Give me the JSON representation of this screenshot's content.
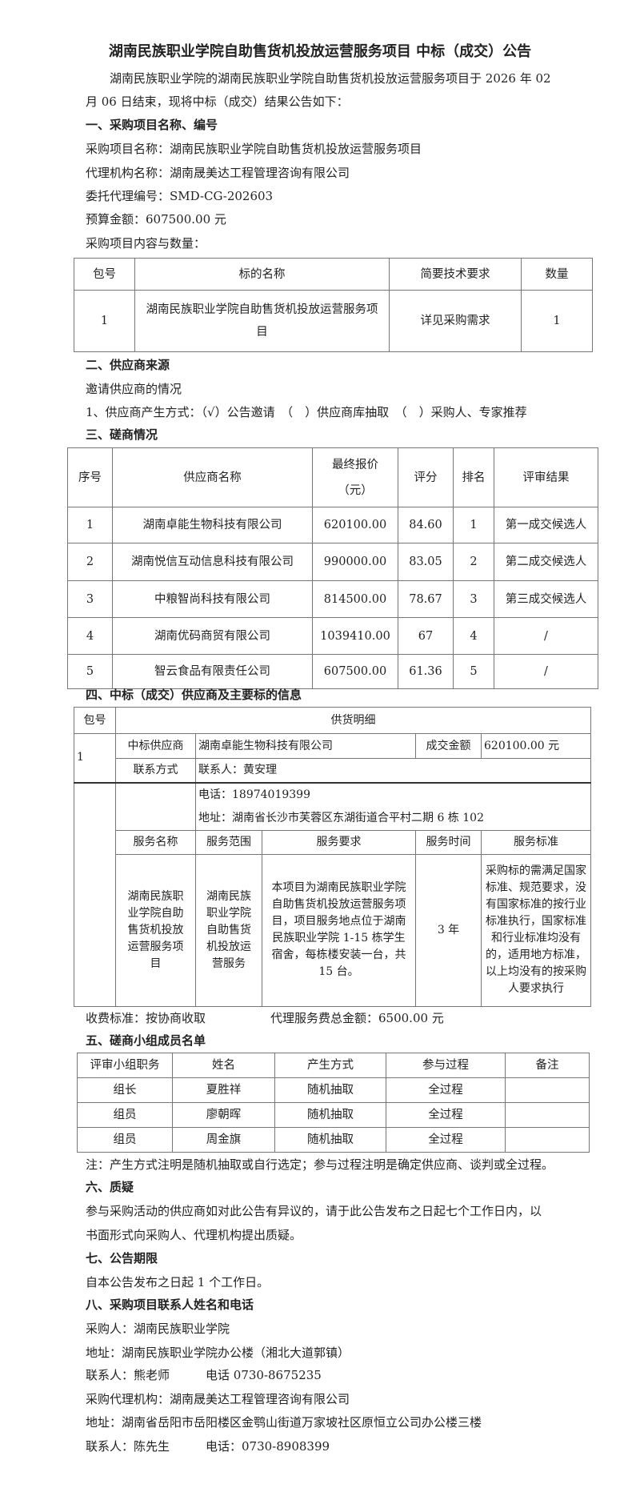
{
  "title": "湖南民族职业学院自助售货机投放运营服务项目 中标（成交）公告",
  "intro": [
    "湖南民族职业学院的湖南民族职业学院自助售货机投放运营服务项目于 2026 年 02",
    "月 06 日结束，现将中标（成交）结果公告如下："
  ],
  "s1": {
    "heading": "一、采购项目名称、编号",
    "project_name": "采购项目名称：湖南民族职业学院自助售货机投放运营服务项目",
    "agency": "代理机构名称：湖南晟美达工程管理咨询有限公司",
    "code": "委托代理编号：SMD-CG-202603",
    "budget": "预算金额：607500.00 元",
    "content_label": "采购项目内容与数量：",
    "table": {
      "headers": [
        "包号",
        "标的名称",
        "简要技术要求",
        "数量"
      ],
      "rows": [
        [
          "1",
          "湖南民族职业学院自助售货机投放运营服务项目",
          "详见采购需求",
          "1"
        ]
      ]
    }
  },
  "s2": {
    "heading": "二、供应商来源",
    "sub": "邀请供应商的情况",
    "method": "1、供应商产生方式：（√）公告邀请　（　）供应商库抽取　（　）采购人、专家推荐"
  },
  "s3": {
    "heading": "三、磋商情况",
    "headers": [
      "序号",
      "供应商名称",
      "最终报价（元）",
      "评分",
      "排名",
      "评审结果"
    ],
    "rows": [
      [
        "1",
        "湖南卓能生物科技有限公司",
        "620100.00",
        "84.60",
        "1",
        "第一成交候选人"
      ],
      [
        "2",
        "湖南悦信互动信息科技有限公司",
        "990000.00",
        "83.05",
        "2",
        "第二成交候选人"
      ],
      [
        "3",
        "中粮智尚科技有限公司",
        "814500.00",
        "78.67",
        "3",
        "第三成交候选人"
      ],
      [
        "4",
        "湖南优码商贸有限公司",
        "1039410.00",
        "67",
        "4",
        "/"
      ],
      [
        "5",
        "智云食品有限责任公司",
        "607500.00",
        "61.36",
        "5",
        "/"
      ]
    ]
  },
  "s4": {
    "heading": "四、中标（成交）供应商及主要标的信息",
    "pkg_label": "包号",
    "detail_label": "供货明细",
    "pkg": "1",
    "winner_label": "中标供应商",
    "winner": "湖南卓能生物科技有限公司",
    "amount_label": "成交金额",
    "amount": "620100.00 元",
    "contact_label": "联系方式",
    "contact": "联系人：黄安理",
    "phone": "电话：18974019399",
    "address": "地址：湖南省长沙市芙蓉区东湖街道合平村二期 6 栋 102",
    "service_headers": [
      "服务名称",
      "服务范围",
      "服务要求",
      "服务时间",
      "服务标准"
    ],
    "service_row": [
      "湖南民族职业学院自助售货机投放运营服务项目",
      "湖南民族职业学院自助售货机投放运营服务",
      "本项目为湖南民族职业学院自助售货机投放运营服务项目，项目服务地点位于湖南民族职业学院 1-15 栋学生宿舍，每栋楼安装一台，共 15 台。",
      "3 年",
      "采购标的需满足国家标准、规范要求，没有国家标准的按行业标准执行，国家标准和行业标准均没有的，适用地方标准，以上均没有的按采购人要求执行"
    ],
    "fee_standard": "收费标准：按协商收取",
    "fee_total": "代理服务费总金额：6500.00 元"
  },
  "s5": {
    "heading": "五、磋商小组成员名单",
    "headers": [
      "评审小组职务",
      "姓名",
      "产生方式",
      "参与过程",
      "备注"
    ],
    "rows": [
      [
        "组长",
        "夏胜祥",
        "随机抽取",
        "全过程",
        ""
      ],
      [
        "组员",
        "廖朝晖",
        "随机抽取",
        "全过程",
        ""
      ],
      [
        "组员",
        "周金旗",
        "随机抽取",
        "全过程",
        ""
      ]
    ],
    "note": "注：产生方式注明是随机抽取或自行选定；参与过程注明是确定供应商、谈判或全过程。"
  },
  "s6": {
    "heading": "六、质疑",
    "text": [
      "参与采购活动的供应商如对此公告有异议的，请于此公告发布之日起七个工作日内，以",
      "书面形式向采购人、代理机构提出质疑。"
    ]
  },
  "s7": {
    "heading": "七、公告期限",
    "text": "自本公告发布之日起 1 个工作日。"
  },
  "s8": {
    "heading": "八、采购项目联系人姓名和电话",
    "lines": [
      "采购人：湖南民族职业学院",
      "地址：湖南民族职业学院办公楼（湘北大道郭镇）",
      "联系人：熊老师　　　电话 0730-8675235",
      "采购代理机构：湖南晟美达工程管理咨询有限公司",
      "地址：湖南省岳阳市岳阳楼区金鹗山街道万家坡社区原恒立公司办公楼三楼",
      "联系人：陈先生　　　电话：0730-8908399"
    ]
  }
}
